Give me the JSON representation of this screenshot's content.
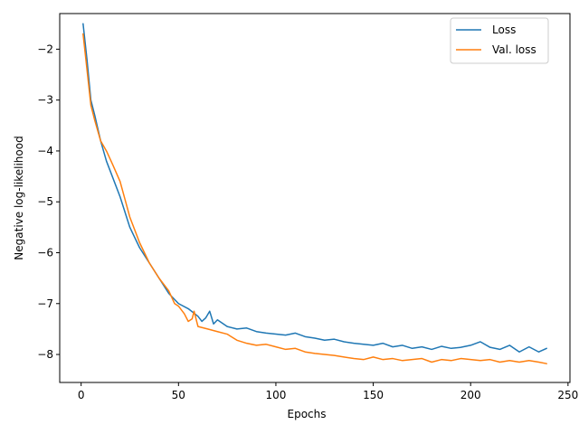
{
  "chart_data": {
    "type": "line",
    "title": "",
    "xlabel": "Epochs",
    "ylabel": "Negative log-likelihood",
    "xlim": [
      -11,
      251
    ],
    "ylim": [
      -8.55,
      -1.3
    ],
    "xticks": [
      0,
      50,
      100,
      150,
      200,
      250
    ],
    "xtick_labels": [
      "0",
      "50",
      "100",
      "150",
      "200",
      "250"
    ],
    "yticks": [
      -2,
      -3,
      -4,
      -5,
      -6,
      -7,
      -8
    ],
    "ytick_labels": [
      "−2",
      "−3",
      "−4",
      "−5",
      "−6",
      "−7",
      "−8"
    ],
    "grid": false,
    "legend_position": "top-right",
    "series": [
      {
        "name": "Loss",
        "color": "#1f77b4",
        "x": [
          1,
          3,
          5,
          7,
          10,
          13,
          16,
          20,
          25,
          30,
          35,
          40,
          45,
          50,
          55,
          60,
          62,
          64,
          66,
          68,
          70,
          75,
          80,
          85,
          90,
          95,
          100,
          105,
          110,
          115,
          120,
          125,
          130,
          135,
          140,
          145,
          150,
          155,
          160,
          165,
          170,
          175,
          180,
          185,
          190,
          195,
          200,
          205,
          210,
          215,
          220,
          225,
          230,
          235,
          239
        ],
        "y": [
          -1.5,
          -2.2,
          -3.0,
          -3.3,
          -3.8,
          -4.2,
          -4.5,
          -4.9,
          -5.5,
          -5.9,
          -6.2,
          -6.5,
          -6.8,
          -7.0,
          -7.1,
          -7.25,
          -7.35,
          -7.28,
          -7.15,
          -7.4,
          -7.32,
          -7.45,
          -7.5,
          -7.48,
          -7.55,
          -7.58,
          -7.6,
          -7.62,
          -7.58,
          -7.65,
          -7.68,
          -7.72,
          -7.7,
          -7.75,
          -7.78,
          -7.8,
          -7.82,
          -7.78,
          -7.85,
          -7.82,
          -7.88,
          -7.85,
          -7.9,
          -7.84,
          -7.88,
          -7.86,
          -7.82,
          -7.75,
          -7.86,
          -7.9,
          -7.82,
          -7.95,
          -7.85,
          -7.95,
          -7.88
        ]
      },
      {
        "name": "Val. loss",
        "color": "#ff7f0e",
        "x": [
          1,
          3,
          5,
          7,
          10,
          13,
          16,
          20,
          25,
          30,
          35,
          40,
          45,
          48,
          50,
          53,
          55,
          57,
          58,
          60,
          65,
          70,
          75,
          80,
          85,
          90,
          95,
          100,
          105,
          110,
          115,
          120,
          125,
          130,
          135,
          140,
          145,
          150,
          155,
          160,
          165,
          170,
          175,
          180,
          185,
          190,
          195,
          200,
          205,
          210,
          215,
          220,
          225,
          230,
          235,
          239
        ],
        "y": [
          -1.7,
          -2.4,
          -3.1,
          -3.4,
          -3.8,
          -4.0,
          -4.25,
          -4.6,
          -5.3,
          -5.8,
          -6.2,
          -6.5,
          -6.75,
          -7.0,
          -7.05,
          -7.2,
          -7.35,
          -7.3,
          -7.15,
          -7.45,
          -7.5,
          -7.55,
          -7.6,
          -7.72,
          -7.78,
          -7.82,
          -7.8,
          -7.85,
          -7.9,
          -7.88,
          -7.95,
          -7.98,
          -8.0,
          -8.02,
          -8.05,
          -8.08,
          -8.1,
          -8.05,
          -8.1,
          -8.08,
          -8.12,
          -8.1,
          -8.08,
          -8.15,
          -8.1,
          -8.12,
          -8.08,
          -8.1,
          -8.12,
          -8.1,
          -8.15,
          -8.12,
          -8.15,
          -8.12,
          -8.15,
          -8.18
        ]
      }
    ]
  }
}
